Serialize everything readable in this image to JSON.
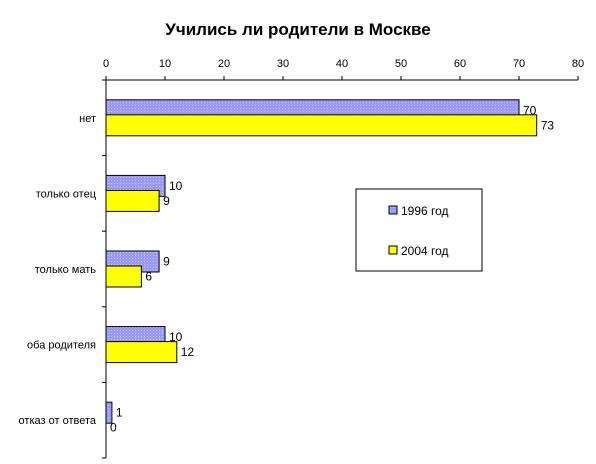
{
  "chart_data": {
    "type": "bar",
    "orientation": "horizontal",
    "title": "Учились ли родители в Москве",
    "xlabel": "",
    "ylabel": "",
    "xlim": [
      0,
      80
    ],
    "x_ticks": [
      "0",
      "10",
      "20",
      "30",
      "40",
      "50",
      "60",
      "70",
      "80"
    ],
    "categories": [
      "нет",
      "только отец",
      "только мать",
      "оба родителя",
      "отказ от ответа"
    ],
    "series": [
      {
        "name": "1996 год",
        "values": [
          70,
          10,
          9,
          10,
          1
        ],
        "color": "#9999ff",
        "pattern": "dotted"
      },
      {
        "name": "2004 год",
        "values": [
          73,
          9,
          6,
          12,
          0
        ],
        "color": "#ffff00",
        "pattern": "solid"
      }
    ],
    "data_labels": true,
    "grid": false,
    "legend_position": "right"
  }
}
